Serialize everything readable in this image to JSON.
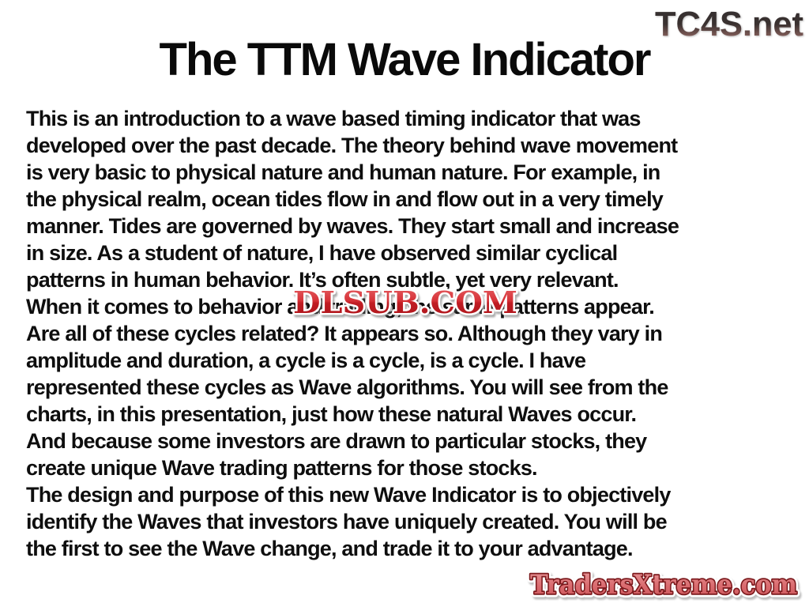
{
  "title": "The TTM Wave Indicator",
  "body": {
    "lines": [
      "This is an introduction to a wave based timing indicator that was",
      "developed over the past decade. The theory behind wave movement",
      "is very basic to physical nature and human nature. For example, in",
      "the physical realm, ocean tides flow in and flow out in a very timely",
      "manner. Tides are governed by waves. They start small and increase",
      "in size. As a student of nature, I have observed similar cyclical",
      "patterns in human behavior. It’s often subtle, yet very relevant.",
      "When it comes to behavior and trading, the same patterns appear.",
      "Are all of these cycles related? It appears so. Although they vary in",
      "amplitude and duration, a cycle is a cycle, is a cycle. I have",
      "represented these cycles as Wave algorithms. You will see from the",
      "charts, in this presentation, just how these natural Waves occur.",
      "And because some investors are drawn to particular stocks, they",
      "create unique Wave trading patterns for those stocks.",
      "The design and purpose of this new Wave Indicator is to objectively",
      "identify the Waves that investors have uniquely created. You will be",
      "the first to see the Wave change, and trade it to your advantage."
    ]
  },
  "watermarks": {
    "tc4s": {
      "text": "TC4S.net",
      "gradient_top": "#343030",
      "gradient_bottom": "#a37a75"
    },
    "dlsub": {
      "text": "DLSUB.COM",
      "red": "#cd2026",
      "gloss_top": "#e66467",
      "dark_bottom": "#aa141a",
      "outline": "#ffffff"
    },
    "tradersxtreme": {
      "text": "TradersXtreme.com",
      "fill": "#d96a6e",
      "outline": "#7c1a1d",
      "outer_outline": "#ffffff"
    }
  },
  "colors": {
    "background": "#ffffff",
    "text": "#0e0e0e"
  }
}
